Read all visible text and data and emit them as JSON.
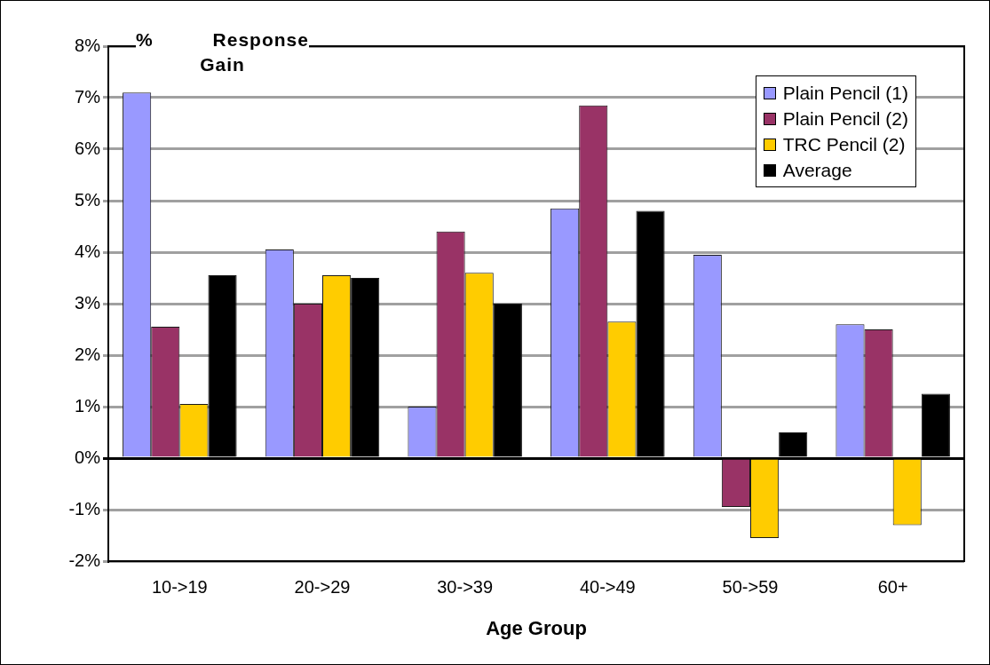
{
  "chart_data": {
    "type": "bar",
    "xlabel": "Age Group",
    "ylabel": "% Response Gain",
    "categories": [
      "10->19",
      "20->29",
      "30->39",
      "40->49",
      "50->59",
      "60+"
    ],
    "series": [
      {
        "name": "Plain Pencil (1)",
        "color": "#9999ff",
        "values": [
          7.1,
          4.05,
          1.0,
          4.85,
          3.95,
          2.6
        ]
      },
      {
        "name": "Plain Pencil (2)",
        "color": "#993366",
        "values": [
          2.55,
          3.0,
          4.4,
          6.85,
          -0.95,
          2.5
        ]
      },
      {
        "name": "TRC Pencil (2)",
        "color": "#ffcc00",
        "values": [
          1.05,
          3.55,
          3.6,
          2.65,
          -1.55,
          -1.3
        ]
      },
      {
        "name": "Average",
        "color": "#000000",
        "values": [
          3.55,
          3.5,
          3.0,
          4.8,
          0.5,
          1.25
        ]
      }
    ],
    "ylim": [
      -2,
      8
    ],
    "yticks": [
      {
        "value": -2,
        "label": "-2%"
      },
      {
        "value": -1,
        "label": "-1%"
      },
      {
        "value": 0,
        "label": "0%"
      },
      {
        "value": 1,
        "label": "1%"
      },
      {
        "value": 2,
        "label": "2%"
      },
      {
        "value": 3,
        "label": "3%"
      },
      {
        "value": 4,
        "label": "4%"
      },
      {
        "value": 5,
        "label": "5%"
      },
      {
        "value": 6,
        "label": "6%"
      },
      {
        "value": 7,
        "label": "7%"
      },
      {
        "value": 8,
        "label": "8%"
      }
    ],
    "grid": "y",
    "legend": "top right"
  }
}
